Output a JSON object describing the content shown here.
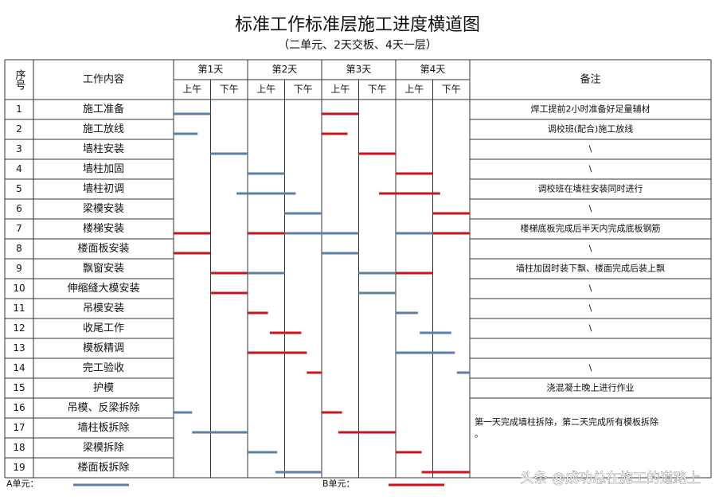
{
  "header": {
    "title": "标准工作标准层施工进度横道图",
    "subtitle": "（二单元、2天交板、4天一层）"
  },
  "table": {
    "col_no": "序号",
    "col_task": "工作内容",
    "col_note": "备注",
    "days": [
      "第1天",
      "第2天",
      "第3天",
      "第4天"
    ],
    "halves": [
      "上午",
      "下午"
    ],
    "rows": [
      {
        "no": "1",
        "task": "施工准备",
        "note": "焊工提前2小时准备好足量辅材",
        "a": [
          [
            0,
            1
          ]
        ],
        "b": [
          [
            4,
            5
          ]
        ]
      },
      {
        "no": "2",
        "task": "施工放线",
        "note": "调校班(配合)施工放线",
        "a": [
          [
            0,
            0.65
          ]
        ],
        "b": [
          [
            4,
            4.7
          ]
        ]
      },
      {
        "no": "3",
        "task": "墙柱安装",
        "note": "\\",
        "a": [
          [
            1,
            2
          ]
        ],
        "b": [
          [
            5,
            6
          ]
        ]
      },
      {
        "no": "4",
        "task": "墙柱加固",
        "note": "\\",
        "a": [
          [
            2,
            3
          ]
        ],
        "b": [
          [
            6,
            7
          ]
        ]
      },
      {
        "no": "5",
        "task": "墙柱初调",
        "note": "调校班在墙柱安装同时进行",
        "a": [
          [
            1.7,
            3.3
          ]
        ],
        "b": [
          [
            5.55,
            7.2
          ]
        ]
      },
      {
        "no": "6",
        "task": "梁模安装",
        "note": "\\",
        "a": [
          [
            3,
            4
          ]
        ],
        "b": [
          [
            7,
            8
          ]
        ]
      },
      {
        "no": "7",
        "task": "楼梯安装",
        "note": "楼梯底板完成后半天内完成底板钢筋",
        "a": [
          [
            3,
            5
          ],
          [
            6,
            7
          ]
        ],
        "b": [
          [
            0,
            1
          ],
          [
            2,
            3
          ],
          [
            7,
            8
          ]
        ]
      },
      {
        "no": "8",
        "task": "楼面板安装",
        "note": "\\",
        "a": [
          [
            4,
            5
          ]
        ],
        "b": [
          [
            0,
            1
          ]
        ]
      },
      {
        "no": "9",
        "task": "飘窗安装",
        "note": "墙柱加固时装下飘、楼面完成后装上飘",
        "a": [
          [
            2,
            3
          ],
          [
            5,
            6
          ]
        ],
        "b": [
          [
            1,
            2
          ],
          [
            6,
            7
          ]
        ]
      },
      {
        "no": "10",
        "task": "伸缩缝大模安装",
        "note": "\\",
        "a": [
          [
            5,
            6
          ]
        ],
        "b": [
          [
            1,
            2
          ]
        ]
      },
      {
        "no": "11",
        "task": "吊模安装",
        "note": "\\",
        "a": [
          [
            6,
            6.6
          ]
        ],
        "b": [
          [
            2,
            2.55
          ]
        ]
      },
      {
        "no": "12",
        "task": "收尾工作",
        "note": "\\",
        "a": [
          [
            6.65,
            7.5
          ]
        ],
        "b": [
          [
            2.6,
            3.45
          ]
        ]
      },
      {
        "no": "13",
        "task": "模板精调",
        "a": [
          [
            6,
            7.6
          ]
        ],
        "b": [
          [
            2,
            3.6
          ]
        ]
      },
      {
        "no": "14",
        "task": "完工验收",
        "note": "\\",
        "a": [
          [
            7.65,
            8
          ]
        ],
        "b": [
          [
            3.6,
            4
          ]
        ]
      },
      {
        "no": "15",
        "task": "护模",
        "note": "浇混凝土晚上进行作业",
        "a": [],
        "b": []
      },
      {
        "no": "16",
        "task": "吊模、反梁拆除",
        "a": [
          [
            0,
            0.5
          ]
        ],
        "b": [
          [
            4,
            4.55
          ]
        ]
      },
      {
        "no": "17",
        "task": "墙柱板拆除",
        "a": [
          [
            0.5,
            2
          ]
        ],
        "b": [
          [
            4.45,
            6
          ]
        ]
      },
      {
        "no": "18",
        "task": "梁模拆除",
        "a": [
          [
            2,
            2.8
          ]
        ],
        "b": [
          [
            6,
            6.7
          ]
        ]
      },
      {
        "no": "19",
        "task": "楼面板拆除",
        "a": [
          [
            2.75,
            4
          ]
        ],
        "b": [
          [
            6.7,
            8
          ]
        ]
      }
    ],
    "shared_note": "第一天完成墙柱拆除，第二天完成所有模板拆除。",
    "color_a": "#5b7fa5",
    "color_b": "#c8161d",
    "xlim": [
      0,
      8
    ]
  },
  "legend": {
    "a": "A单元：",
    "b": "B单元："
  },
  "watermark": "头条 @成功总在施工的道路上"
}
